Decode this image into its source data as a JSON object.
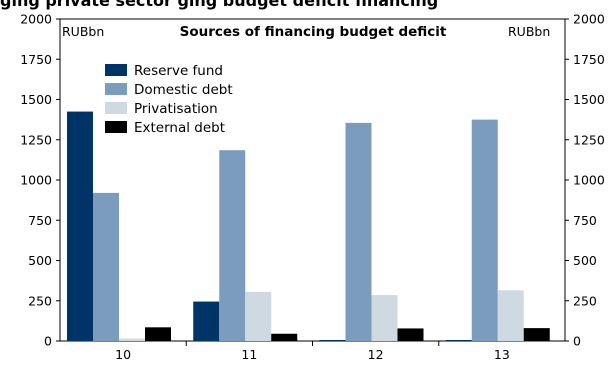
{
  "header": {
    "clipped_title": "ging private sector ging budget deficit financing"
  },
  "chart_data": {
    "type": "bar",
    "title": "Sources of financing budget deficit",
    "unit_left": "RUBbn",
    "unit_right": "RUBbn",
    "categories": [
      "10",
      "11",
      "12",
      "13"
    ],
    "ylim": [
      0,
      2000
    ],
    "yticks": [
      0,
      250,
      500,
      750,
      1000,
      1250,
      1500,
      1750,
      2000
    ],
    "series": [
      {
        "name": "Reserve fund",
        "color": "#003366",
        "values": [
          1425,
          245,
          5,
          5
        ]
      },
      {
        "name": "Domestic debt",
        "color": "#7b9cbd",
        "values": [
          920,
          1185,
          1355,
          1375
        ]
      },
      {
        "name": "Privatisation",
        "color": "#cfd9e2",
        "values": [
          15,
          305,
          285,
          315
        ]
      },
      {
        "name": "External debt",
        "color": "#000000",
        "values": [
          85,
          45,
          78,
          80
        ]
      }
    ],
    "legend_position": "top-left",
    "grid": false
  }
}
